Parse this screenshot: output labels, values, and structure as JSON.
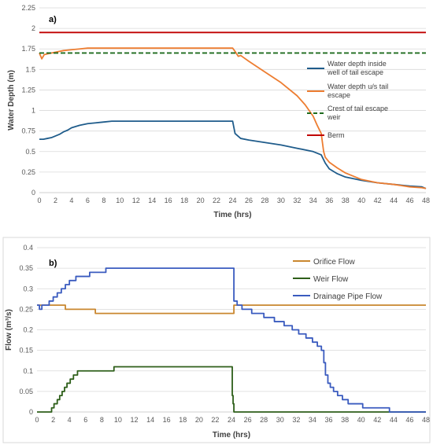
{
  "chart_data": [
    {
      "type": "line",
      "panel_label": "a)",
      "xlabel": "Time (hrs)",
      "ylabel": "Water Depth (m)",
      "xlim": [
        0,
        48
      ],
      "ylim": [
        0,
        2.25
      ],
      "x_ticks": [
        "0",
        "2",
        "4",
        "6",
        "8",
        "10",
        "12",
        "14",
        "16",
        "18",
        "20",
        "22",
        "24",
        "26",
        "28",
        "30",
        "32",
        "34",
        "36",
        "38",
        "40",
        "42",
        "44",
        "46",
        "48"
      ],
      "y_ticks": [
        "0",
        "0.25",
        "0.5",
        "0.75",
        "1",
        "1.25",
        "1.5",
        "1.75",
        "2",
        "2.25"
      ],
      "grid": "horizontal",
      "legend_position": "right",
      "series": [
        {
          "name": "Water depth inside well of tail escape",
          "color": "#1f5c8b",
          "style": "solid",
          "x": [
            0,
            0.5,
            1,
            1.5,
            2,
            2.5,
            3,
            3.5,
            4,
            5,
            6,
            7,
            8,
            9,
            10,
            12,
            16,
            20,
            23,
            24,
            24.3,
            25,
            26,
            28,
            30,
            32,
            34,
            35,
            35.5,
            36,
            37,
            38,
            40,
            42,
            44,
            46,
            47.5,
            48
          ],
          "y": [
            0.65,
            0.65,
            0.66,
            0.67,
            0.69,
            0.71,
            0.74,
            0.76,
            0.79,
            0.82,
            0.84,
            0.85,
            0.86,
            0.87,
            0.87,
            0.87,
            0.87,
            0.87,
            0.87,
            0.87,
            0.72,
            0.66,
            0.64,
            0.61,
            0.58,
            0.54,
            0.5,
            0.46,
            0.36,
            0.29,
            0.23,
            0.19,
            0.15,
            0.12,
            0.1,
            0.08,
            0.07,
            0.05
          ]
        },
        {
          "name": "Water depth u/s tail escape",
          "color": "#ed7d31",
          "style": "solid",
          "x": [
            0,
            0.3,
            0.6,
            1,
            2,
            3,
            4,
            5,
            6,
            8,
            12,
            16,
            20,
            23,
            24,
            24.3,
            24.7,
            25,
            26,
            28,
            30,
            32,
            33,
            34,
            34.5,
            35,
            35.3,
            35.5,
            36,
            37,
            38,
            40,
            42,
            44,
            46,
            47.5,
            48
          ],
          "y": [
            1.7,
            1.63,
            1.68,
            1.69,
            1.71,
            1.73,
            1.74,
            1.75,
            1.76,
            1.76,
            1.76,
            1.76,
            1.76,
            1.76,
            1.76,
            1.72,
            1.66,
            1.67,
            1.6,
            1.47,
            1.34,
            1.18,
            1.07,
            0.93,
            0.82,
            0.72,
            0.5,
            0.43,
            0.37,
            0.3,
            0.24,
            0.16,
            0.12,
            0.1,
            0.07,
            0.06,
            0.05
          ]
        },
        {
          "name": "Crest of tail escape weir",
          "color": "#1e6b1e",
          "style": "dashed",
          "x": [
            0,
            48
          ],
          "y": [
            1.7,
            1.7
          ]
        },
        {
          "name": "Berm",
          "color": "#c00000",
          "style": "solid",
          "x": [
            0,
            48
          ],
          "y": [
            1.95,
            1.95
          ]
        }
      ]
    },
    {
      "type": "line",
      "panel_label": "b)",
      "xlabel": "Time (hrs)",
      "ylabel": "Flow (m³/s)",
      "xlim": [
        0,
        48
      ],
      "ylim": [
        0,
        0.4
      ],
      "x_ticks": [
        "0",
        "2",
        "4",
        "6",
        "8",
        "10",
        "12",
        "14",
        "16",
        "18",
        "20",
        "22",
        "24",
        "26",
        "28",
        "30",
        "32",
        "34",
        "36",
        "38",
        "40",
        "42",
        "44",
        "46",
        "48"
      ],
      "y_ticks": [
        "0",
        "0.05",
        "0.1",
        "0.15",
        "0.2",
        "0.25",
        "0.3",
        "0.35",
        "0.4"
      ],
      "grid": "horizontal",
      "legend_position": "top-right",
      "series": [
        {
          "name": "Orifice Flow",
          "color": "#c9872f",
          "style": "step",
          "x": [
            0,
            1.5,
            3.5,
            7.2,
            24.3,
            48
          ],
          "y": [
            0.26,
            0.26,
            0.25,
            0.24,
            0.26,
            0.26
          ]
        },
        {
          "name": "Weir Flow",
          "color": "#2e5f1a",
          "style": "step",
          "x": [
            0,
            1.8,
            2.1,
            2.5,
            2.8,
            3.1,
            3.4,
            3.7,
            4.1,
            4.5,
            5.0,
            5.5,
            6.0,
            7.0,
            9.5,
            24.0,
            24.1,
            24.2,
            24.3,
            48
          ],
          "y": [
            0,
            0.01,
            0.02,
            0.03,
            0.04,
            0.05,
            0.06,
            0.07,
            0.08,
            0.09,
            0.1,
            0.1,
            0.1,
            0.1,
            0.11,
            0.11,
            0.04,
            0.02,
            0,
            0
          ]
        },
        {
          "name": "Drainage Pipe Flow",
          "color": "#3a5bbf",
          "style": "step",
          "x": [
            0,
            0.3,
            0.6,
            1.5,
            2,
            2.5,
            3,
            3.5,
            4,
            4.8,
            5.5,
            6.5,
            8.5,
            24.0,
            24.3,
            24.7,
            25.3,
            26.5,
            28,
            29.3,
            30.5,
            31.5,
            32.3,
            33.2,
            34,
            34.6,
            35.1,
            35.4,
            35.6,
            35.9,
            36.2,
            36.6,
            37.1,
            37.7,
            38.4,
            39.2,
            40.2,
            43.5,
            48
          ],
          "y": [
            0.26,
            0.25,
            0.26,
            0.27,
            0.28,
            0.29,
            0.3,
            0.31,
            0.32,
            0.33,
            0.33,
            0.34,
            0.35,
            0.35,
            0.27,
            0.26,
            0.25,
            0.24,
            0.23,
            0.22,
            0.21,
            0.2,
            0.19,
            0.18,
            0.17,
            0.16,
            0.15,
            0.12,
            0.09,
            0.07,
            0.06,
            0.05,
            0.04,
            0.03,
            0.02,
            0.02,
            0.01,
            0,
            0
          ]
        }
      ]
    }
  ]
}
